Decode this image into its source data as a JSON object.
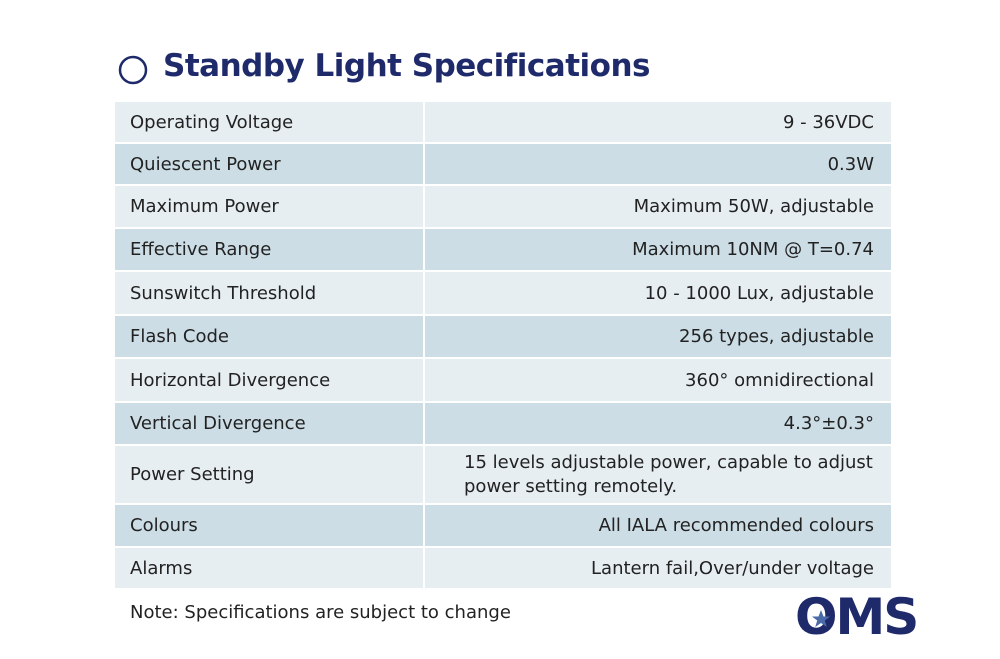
{
  "title": "Standby Light Specifications",
  "table": {
    "rows": [
      [
        "Operating Voltage",
        "9 - 36VDC"
      ],
      [
        "Quiescent Power",
        "0.3W"
      ],
      [
        "Maximum Power",
        "Maximum 50W, adjustable"
      ],
      [
        "Effective Range",
        "Maximum 10NM @ T=0.74"
      ],
      [
        "Sunswitch Threshold",
        "10 - 1000 Lux, adjustable"
      ],
      [
        "Flash Code",
        "256 types, adjustable"
      ],
      [
        "Horizontal Divergence",
        "360° omnidirectional"
      ],
      [
        "Vertical Divergence",
        "4.3°±0.3°"
      ],
      [
        "Power Setting",
        "15 levels adjustable power, capable to adjust power setting remotely."
      ],
      [
        "Colours",
        "All IALA recommended colours"
      ],
      [
        "Alarms",
        "Lantern fail,Over/under voltage"
      ]
    ]
  },
  "note": "Note: Specifications are subject to change",
  "logo": "OMS"
}
